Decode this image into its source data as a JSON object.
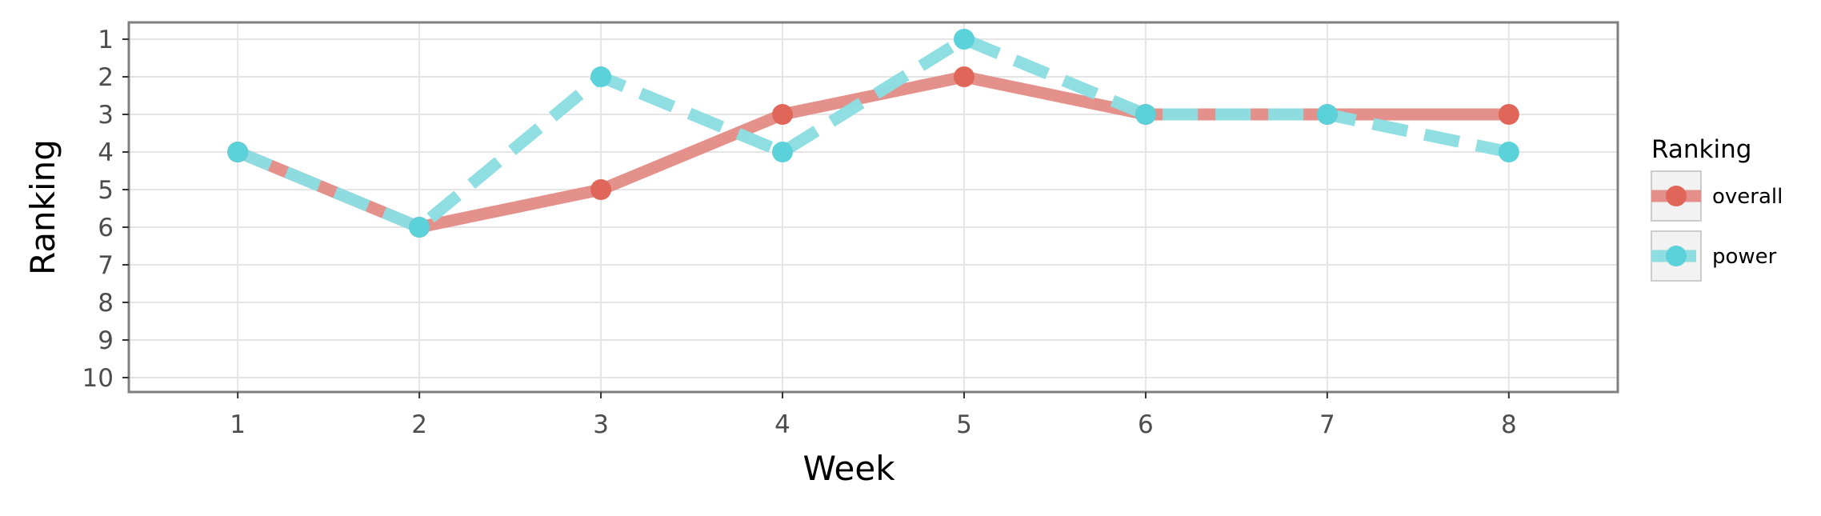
{
  "chart_data": {
    "type": "line",
    "xlabel": "Week",
    "ylabel": "Ranking",
    "x": [
      1,
      2,
      3,
      4,
      5,
      6,
      7,
      8
    ],
    "x_ticks": [
      "1",
      "2",
      "3",
      "4",
      "5",
      "6",
      "7",
      "8"
    ],
    "y_ticks": [
      "1",
      "2",
      "3",
      "4",
      "5",
      "6",
      "7",
      "8",
      "9",
      "10"
    ],
    "xlim": [
      0.4,
      8.6
    ],
    "ylim": [
      1,
      10
    ],
    "y_reversed": true,
    "grid": true,
    "legend": {
      "title": "Ranking",
      "position": "right"
    },
    "series": [
      {
        "name": "overall",
        "values": [
          4,
          6,
          5,
          3,
          2,
          3,
          3,
          3
        ],
        "color": "#e06659",
        "line_color": "#e48f89",
        "dashed": false
      },
      {
        "name": "power",
        "values": [
          4,
          6,
          2,
          4,
          1,
          3,
          3,
          4
        ],
        "color": "#5bd1d9",
        "line_color": "#8ddde1",
        "dashed": true
      }
    ]
  }
}
